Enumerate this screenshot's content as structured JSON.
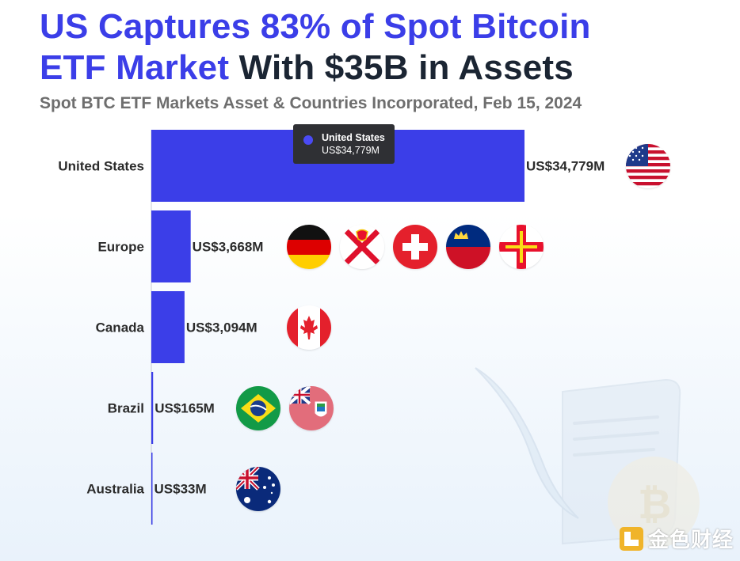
{
  "header": {
    "title_line1_highlight": "US Captures 83% of Spot Bitcoin",
    "title_line2_highlight": "ETF Market",
    "title_line2_rest": " With $35B in Assets",
    "subtitle": "Spot BTC ETF Markets Asset & Countries Incorporated, Feb 15, 2024"
  },
  "chart_data": {
    "type": "bar",
    "orientation": "horizontal",
    "categories": [
      "United States",
      "Europe",
      "Canada",
      "Brazil",
      "Australia"
    ],
    "values": [
      34779,
      3668,
      3094,
      165,
      33
    ],
    "value_labels": [
      "US$34,779M",
      "US$3,668M",
      "US$3,094M",
      "US$165M",
      "US$33M"
    ],
    "unit": "US$ millions",
    "xlim": [
      0,
      34779
    ],
    "grid": false,
    "bar_color": "#3b3ee8",
    "flags": [
      [
        "united-states"
      ],
      [
        "germany",
        "jersey",
        "switzerland",
        "liechtenstein",
        "guernsey"
      ],
      [
        "canada"
      ],
      [
        "brazil",
        "bermuda"
      ],
      [
        "australia"
      ]
    ]
  },
  "tooltip": {
    "name": "United States",
    "value": "US$34,779M"
  },
  "colors": {
    "accent": "#3b3ee8",
    "title_dark": "#1b2533",
    "subtitle_gray": "#6e6e6e",
    "tooltip_bg": "#2f3034"
  },
  "watermark": {
    "text": "金色财经",
    "logo_icon": "jinse-logo-icon"
  },
  "decoration": {
    "icon": "quill-scroll-bitcoin-icon"
  }
}
